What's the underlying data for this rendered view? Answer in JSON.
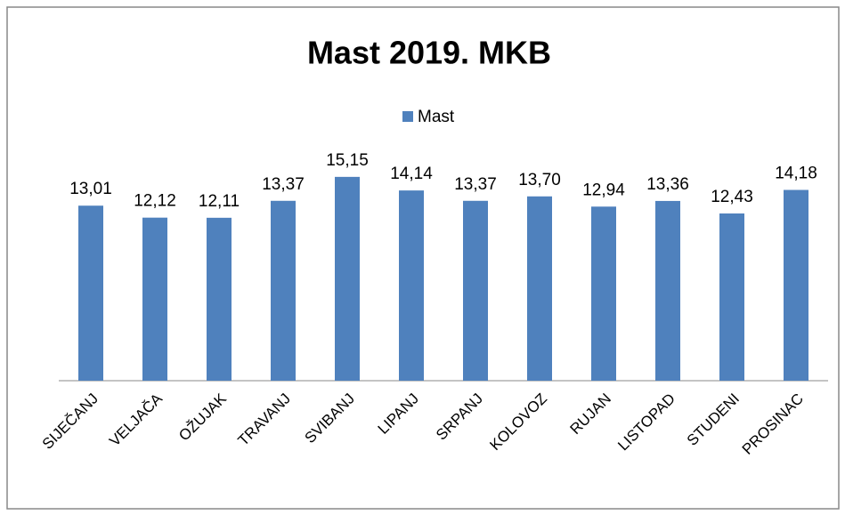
{
  "chart_data": {
    "type": "bar",
    "title": "Mast 2019. MKB",
    "categories": [
      "SIJEČANJ",
      "VELJAČA",
      "OŽUJAK",
      "TRAVANJ",
      "SVIBANJ",
      "LIPANJ",
      "SRPANJ",
      "KOLOVOZ",
      "RUJAN",
      "LISTOPAD",
      "STUDENI",
      "PROSINAC"
    ],
    "series": [
      {
        "name": "Mast",
        "color": "#4f81bd",
        "values": [
          13.01,
          12.12,
          12.11,
          13.37,
          15.15,
          14.14,
          13.37,
          13.7,
          12.94,
          13.36,
          12.43,
          14.18
        ],
        "value_labels": [
          "13,01",
          "12,12",
          "12,11",
          "13,37",
          "15,15",
          "14,14",
          "13,37",
          "13,70",
          "12,94",
          "13,36",
          "12,43",
          "14,18"
        ]
      }
    ],
    "ylim": [
      0,
      16
    ],
    "legend": "top"
  }
}
